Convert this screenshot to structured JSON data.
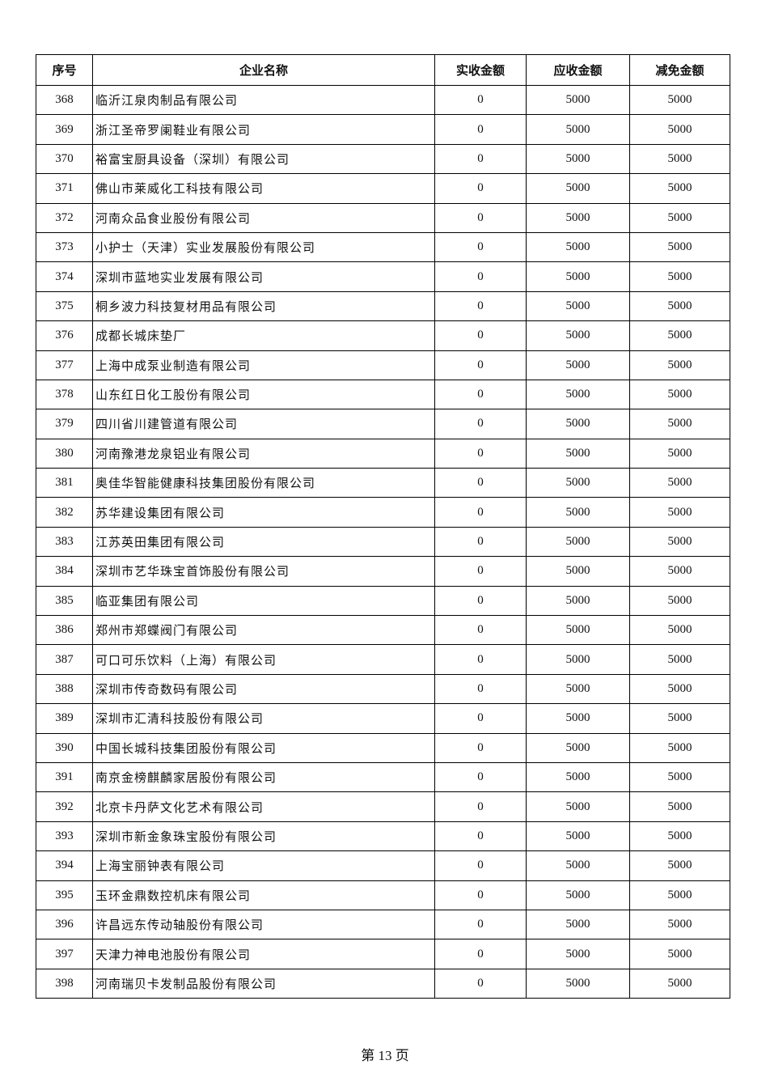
{
  "table": {
    "headers": [
      "序号",
      "企业名称",
      "实收金额",
      "应收金额",
      "减免金额"
    ],
    "rows": [
      [
        "368",
        "临沂江泉肉制品有限公司",
        "0",
        "5000",
        "5000"
      ],
      [
        "369",
        "浙江圣帝罗阑鞋业有限公司",
        "0",
        "5000",
        "5000"
      ],
      [
        "370",
        "裕富宝厨具设备（深圳）有限公司",
        "0",
        "5000",
        "5000"
      ],
      [
        "371",
        "佛山市莱威化工科技有限公司",
        "0",
        "5000",
        "5000"
      ],
      [
        "372",
        "河南众品食业股份有限公司",
        "0",
        "5000",
        "5000"
      ],
      [
        "373",
        "小护士（天津）实业发展股份有限公司",
        "0",
        "5000",
        "5000"
      ],
      [
        "374",
        "深圳市蓝地实业发展有限公司",
        "0",
        "5000",
        "5000"
      ],
      [
        "375",
        "桐乡波力科技复材用品有限公司",
        "0",
        "5000",
        "5000"
      ],
      [
        "376",
        "成都长城床垫厂",
        "0",
        "5000",
        "5000"
      ],
      [
        "377",
        "上海中成泵业制造有限公司",
        "0",
        "5000",
        "5000"
      ],
      [
        "378",
        "山东红日化工股份有限公司",
        "0",
        "5000",
        "5000"
      ],
      [
        "379",
        "四川省川建管道有限公司",
        "0",
        "5000",
        "5000"
      ],
      [
        "380",
        "河南豫港龙泉铝业有限公司",
        "0",
        "5000",
        "5000"
      ],
      [
        "381",
        "奥佳华智能健康科技集团股份有限公司",
        "0",
        "5000",
        "5000"
      ],
      [
        "382",
        "苏华建设集团有限公司",
        "0",
        "5000",
        "5000"
      ],
      [
        "383",
        "江苏英田集团有限公司",
        "0",
        "5000",
        "5000"
      ],
      [
        "384",
        "深圳市艺华珠宝首饰股份有限公司",
        "0",
        "5000",
        "5000"
      ],
      [
        "385",
        "临亚集团有限公司",
        "0",
        "5000",
        "5000"
      ],
      [
        "386",
        "郑州市郑蝶阀门有限公司",
        "0",
        "5000",
        "5000"
      ],
      [
        "387",
        "可口可乐饮料（上海）有限公司",
        "0",
        "5000",
        "5000"
      ],
      [
        "388",
        "深圳市传奇数码有限公司",
        "0",
        "5000",
        "5000"
      ],
      [
        "389",
        "深圳市汇清科技股份有限公司",
        "0",
        "5000",
        "5000"
      ],
      [
        "390",
        "中国长城科技集团股份有限公司",
        "0",
        "5000",
        "5000"
      ],
      [
        "391",
        "南京金榜麒麟家居股份有限公司",
        "0",
        "5000",
        "5000"
      ],
      [
        "392",
        "北京卡丹萨文化艺术有限公司",
        "0",
        "5000",
        "5000"
      ],
      [
        "393",
        "深圳市新金象珠宝股份有限公司",
        "0",
        "5000",
        "5000"
      ],
      [
        "394",
        "上海宝丽钟表有限公司",
        "0",
        "5000",
        "5000"
      ],
      [
        "395",
        "玉环金鼎数控机床有限公司",
        "0",
        "5000",
        "5000"
      ],
      [
        "396",
        "许昌远东传动轴股份有限公司",
        "0",
        "5000",
        "5000"
      ],
      [
        "397",
        "天津力神电池股份有限公司",
        "0",
        "5000",
        "5000"
      ],
      [
        "398",
        "河南瑞贝卡发制品股份有限公司",
        "0",
        "5000",
        "5000"
      ]
    ]
  },
  "footer": {
    "page_label": "第 13 页"
  }
}
